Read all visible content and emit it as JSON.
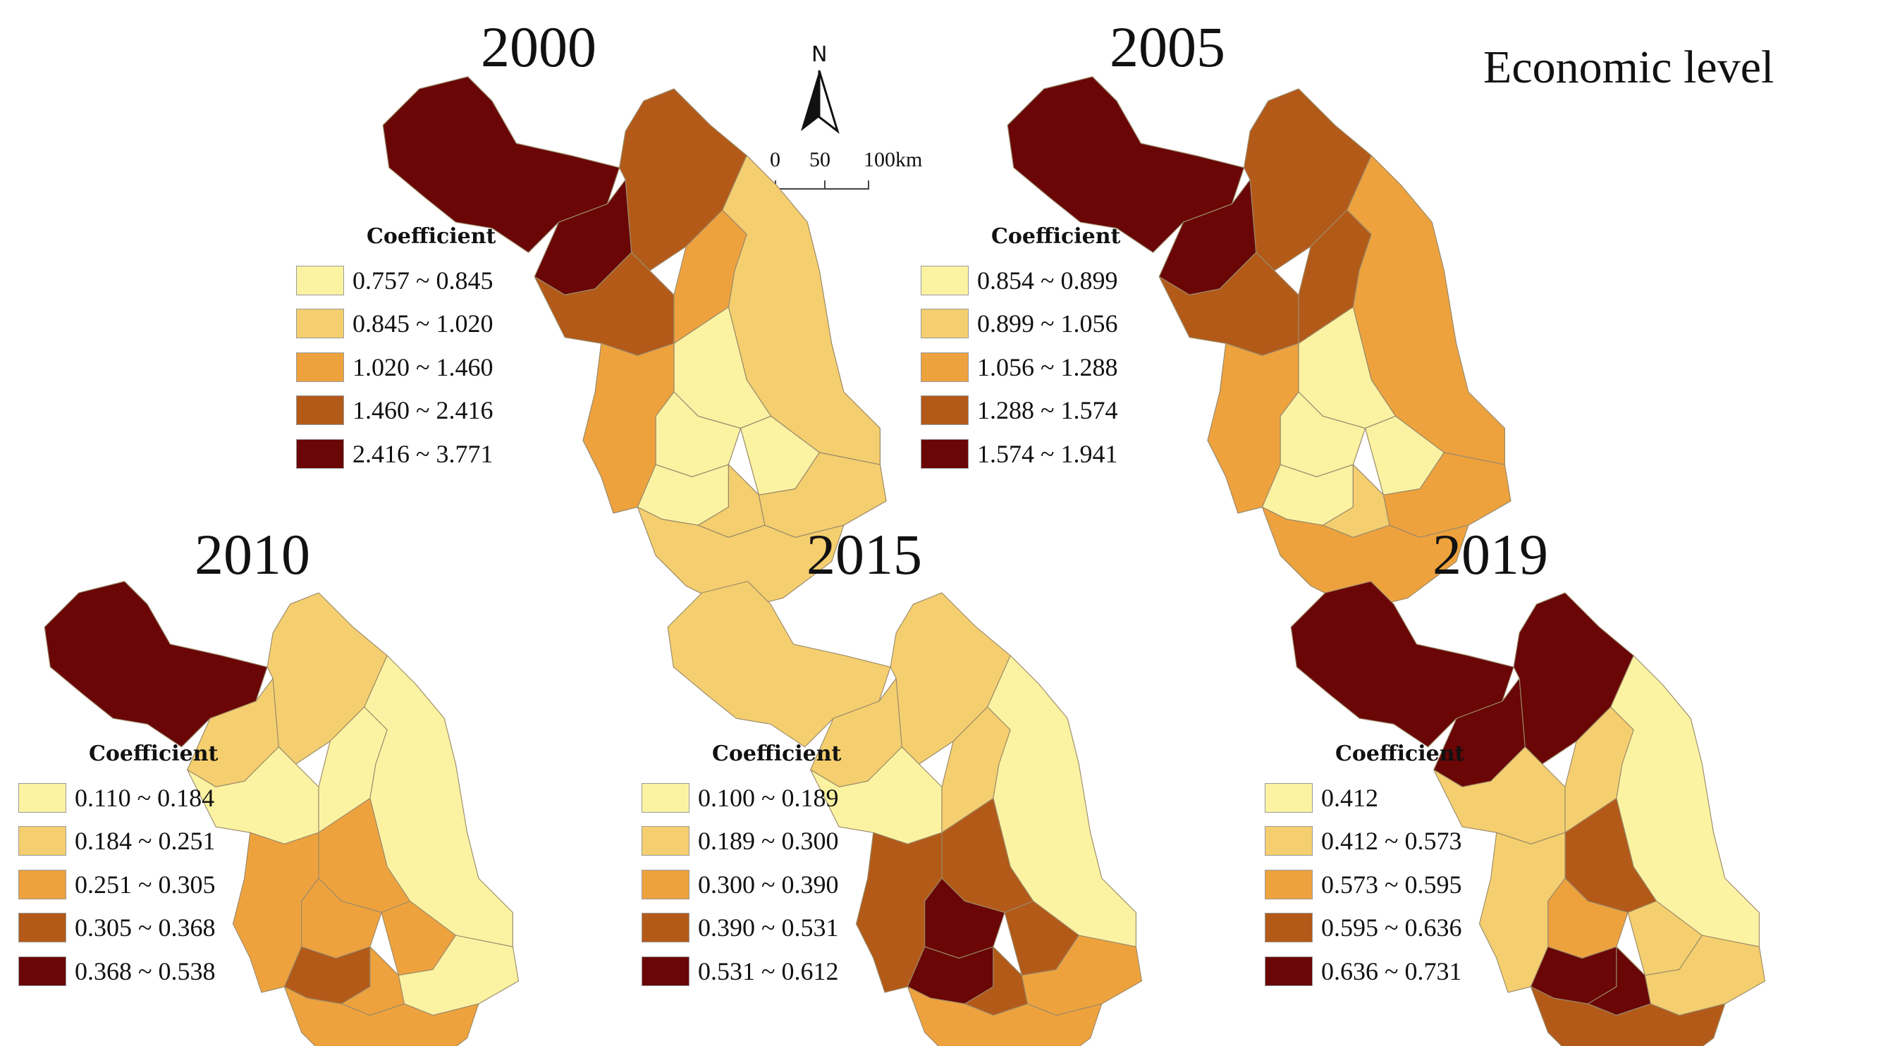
{
  "title": "Economic level",
  "legend_title": "Coefficient",
  "north_label": "N",
  "scale_labels": [
    "0",
    "50",
    "100km"
  ],
  "classes": [
    {
      "level": 1,
      "color": "#fbf3a2"
    },
    {
      "level": 2,
      "color": "#f5cf6f"
    },
    {
      "level": 3,
      "color": "#eea23e"
    },
    {
      "level": 4,
      "color": "#b35a19"
    },
    {
      "level": 5,
      "color": "#6a0606"
    }
  ],
  "panels": [
    {
      "year": "2000",
      "legend": [
        "0.757 ~ 0.845",
        "0.845 ~ 1.020",
        "1.020 ~ 1.460",
        "1.460 ~ 2.416",
        "2.416 ~ 3.771"
      ],
      "region_classes": {
        "xuzhou": 5,
        "suqian_w": 5,
        "lianyungang": 4,
        "suqian": 4,
        "huaian": 3,
        "yancheng": 2,
        "yangzhou": 1,
        "taizhou": 1,
        "nanjing": 3,
        "zhenjiang": 1,
        "changzhou": 1,
        "wuxi": 2,
        "nantong": 2,
        "suzhou": 2
      }
    },
    {
      "year": "2005",
      "legend": [
        "0.854 ~ 0.899",
        "0.899 ~ 1.056",
        "1.056 ~ 1.288",
        "1.288 ~ 1.574",
        "1.574 ~ 1.941"
      ],
      "region_classes": {
        "xuzhou": 5,
        "suqian_w": 5,
        "lianyungang": 4,
        "suqian": 4,
        "huaian": 4,
        "yancheng": 3,
        "yangzhou": 1,
        "taizhou": 1,
        "nanjing": 3,
        "zhenjiang": 1,
        "changzhou": 1,
        "wuxi": 2,
        "nantong": 3,
        "suzhou": 3
      }
    },
    {
      "year": "2010",
      "legend": [
        "0.110 ~ 0.184",
        "0.184 ~ 0.251",
        "0.251 ~ 0.305",
        "0.305 ~ 0.368",
        "0.368 ~ 0.538"
      ],
      "region_classes": {
        "xuzhou": 5,
        "suqian_w": 2,
        "lianyungang": 2,
        "suqian": 1,
        "huaian": 1,
        "yancheng": 1,
        "yangzhou": 3,
        "taizhou": 3,
        "nanjing": 3,
        "zhenjiang": 3,
        "changzhou": 4,
        "wuxi": 3,
        "nantong": 1,
        "suzhou": 3
      }
    },
    {
      "year": "2015",
      "legend": [
        "0.100 ~ 0.189",
        "0.189 ~ 0.300",
        "0.300 ~ 0.390",
        "0.390 ~ 0.531",
        "0.531 ~ 0.612"
      ],
      "region_classes": {
        "xuzhou": 2,
        "suqian_w": 2,
        "lianyungang": 2,
        "suqian": 1,
        "huaian": 2,
        "yancheng": 1,
        "yangzhou": 4,
        "taizhou": 4,
        "nanjing": 4,
        "zhenjiang": 5,
        "changzhou": 5,
        "wuxi": 4,
        "nantong": 3,
        "suzhou": 3
      }
    },
    {
      "year": "2019",
      "legend": [
        "0.412",
        "0.412 ~ 0.573",
        "0.573 ~ 0.595",
        "0.595 ~ 0.636",
        "0.636 ~ 0.731"
      ],
      "region_classes": {
        "xuzhou": 5,
        "suqian_w": 5,
        "lianyungang": 5,
        "suqian": 2,
        "huaian": 2,
        "yancheng": 1,
        "yangzhou": 4,
        "taizhou": 2,
        "nanjing": 2,
        "zhenjiang": 3,
        "changzhou": 5,
        "wuxi": 5,
        "nantong": 2,
        "suzhou": 4
      }
    }
  ]
}
